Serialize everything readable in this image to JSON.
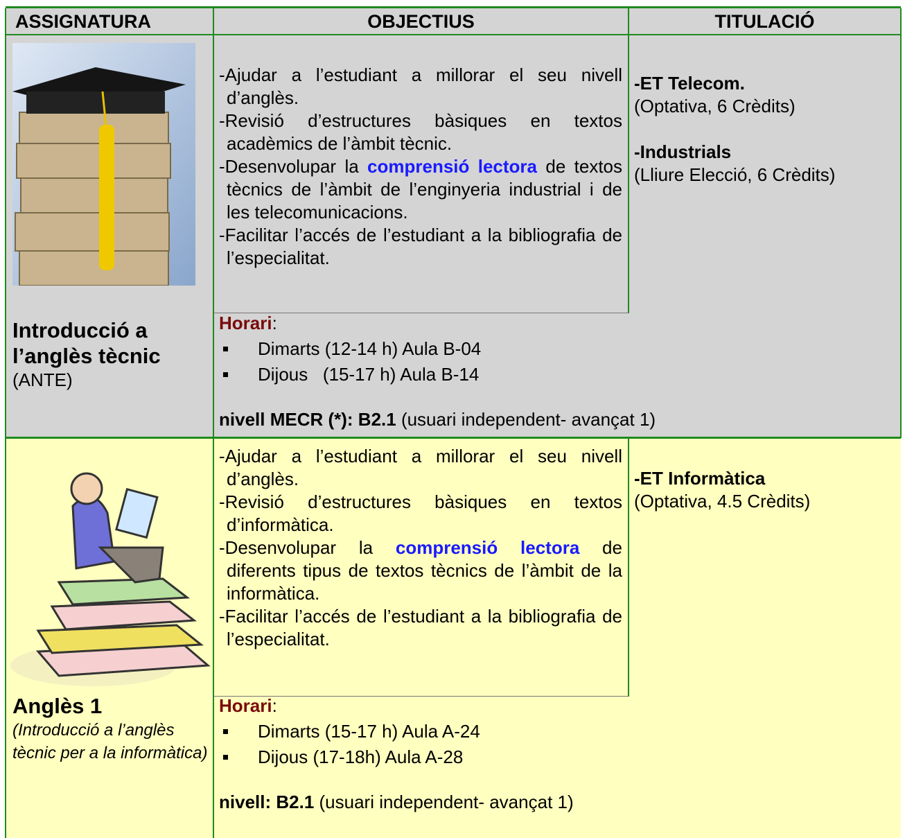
{
  "table": {
    "headers": [
      "ASSIGNATURA",
      "OBJECTIUS",
      "TITULACIÓ"
    ],
    "rows": [
      {
        "subject_title": "Introducció a l’anglès tècnic",
        "subject_note": "(ANTE)",
        "objectives": [
          [
            "-Ajudar a l’estudiant a millorar el seu nivell d’anglès."
          ],
          [
            "-Revisió d’estructures bàsiques en textos acadèmics de l’àmbit tècnic."
          ],
          [
            "-Desenvolupar la ",
            "comprensió lectora",
            " de textos tècnics de l’àmbit de l’enginyeria industrial i de les telecomunicacions."
          ],
          [
            "-Facilitar l’accés de l’estudiant a la bibliografia de l’especialitat."
          ]
        ],
        "degrees": [
          {
            "name": "-ET Telecom.",
            "detail": "(Optativa, 6 Crèdits)"
          },
          {
            "name": "-Industrials",
            "detail": "(Lliure Elecció,  6 Crèdits)"
          }
        ],
        "schedule_label": "Horari",
        "schedule_suffix": ":",
        "schedule": [
          "Dimarts (12-14 h) Aula B-04",
          "Dijous   (15-17 h) Aula B-14"
        ],
        "level_bold": "nivell MECR (*): B2.1",
        "level_rest": " (usuari independent- avançat 1)"
      },
      {
        "subject_title": "Anglès 1",
        "subject_note": "(Introducció a l’anglès tècnic per a la informàtica)",
        "objectives": [
          [
            "-Ajudar a l’estudiant a millorar el seu nivell d’anglès."
          ],
          [
            "-Revisió d’estructures bàsiques en textos d’informàtica."
          ],
          [
            "-Desenvolupar la ",
            "comprensió lectora",
            " de diferents tipus de textos tècnics de l’àmbit de la informàtica."
          ],
          [
            "-Facilitar l’accés de l’estudiant a la bibliografia de l’especialitat."
          ]
        ],
        "degrees": [
          {
            "name": "-ET Informàtica",
            "detail": "(Optativa, 4.5 Crèdits)"
          }
        ],
        "schedule_label": "Horari",
        "schedule_suffix": ":",
        "schedule": [
          "Dimarts (15-17 h) Aula A-24",
          "Dijous (17-18h) Aula A-28"
        ],
        "level_bold": "nivell: B2.1",
        "level_rest": " (usuari independent- avançat 1)"
      }
    ]
  }
}
